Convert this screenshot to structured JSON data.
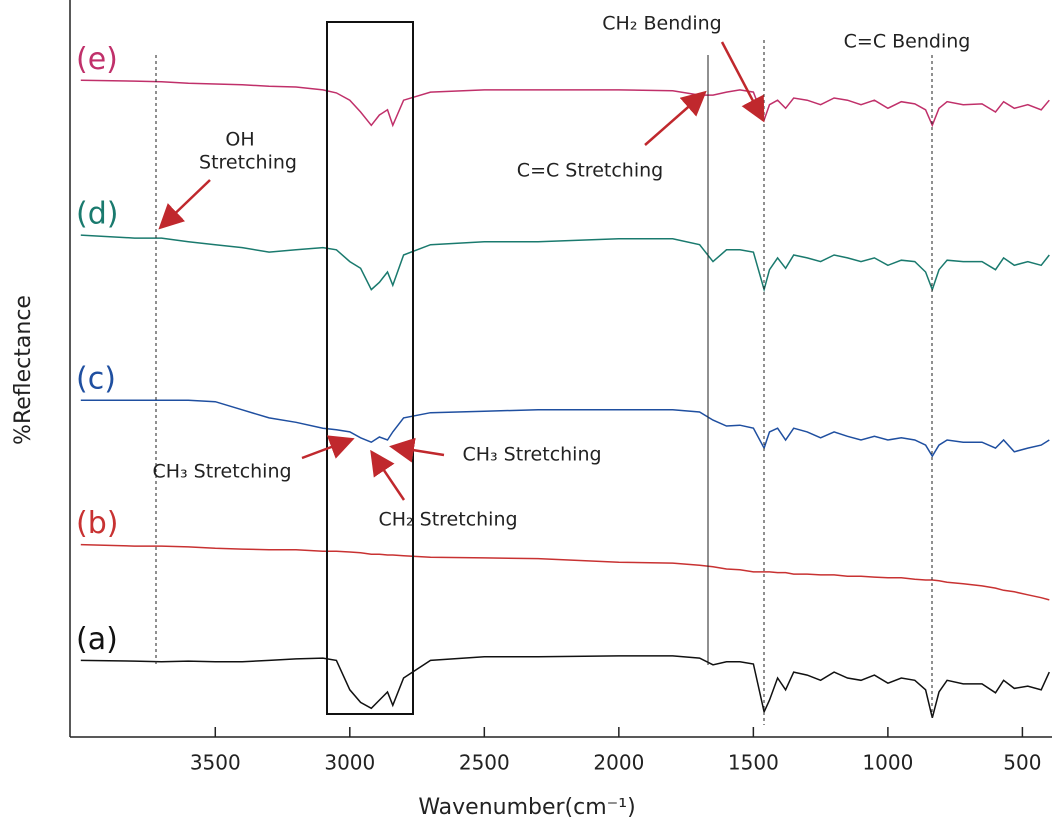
{
  "chart_data": {
    "type": "line",
    "xlabel": "Wavenumber(cm⁻¹)",
    "ylabel": "%Reflectance",
    "xlim": [
      4040,
      390
    ],
    "ylim": [
      0,
      100
    ],
    "xticks": [
      3500,
      3000,
      2500,
      2000,
      1500,
      1000,
      500
    ],
    "x": [
      4000,
      3800,
      3700,
      3600,
      3500,
      3400,
      3300,
      3200,
      3100,
      3050,
      3000,
      2960,
      2920,
      2890,
      2860,
      2840,
      2800,
      2700,
      2500,
      2300,
      2000,
      1800,
      1700,
      1650,
      1600,
      1550,
      1500,
      1460,
      1440,
      1410,
      1380,
      1350,
      1300,
      1250,
      1200,
      1150,
      1100,
      1050,
      1000,
      950,
      900,
      860,
      835,
      810,
      780,
      720,
      650,
      600,
      570,
      530,
      480,
      430,
      400
    ],
    "series": [
      {
        "name": "(a)",
        "color": "#111111",
        "values": [
          10.4,
          10.3,
          10.2,
          10.3,
          10.2,
          10.2,
          10.4,
          10.6,
          10.7,
          10.4,
          6.4,
          4.7,
          3.9,
          5.0,
          6.1,
          4.3,
          8.0,
          10.4,
          10.9,
          10.9,
          11.0,
          11.0,
          10.7,
          9.8,
          10.2,
          10.2,
          9.9,
          3.4,
          5.0,
          8.0,
          6.4,
          8.8,
          8.4,
          7.7,
          8.8,
          8.0,
          7.7,
          8.4,
          7.3,
          8.0,
          7.7,
          6.4,
          2.6,
          6.1,
          7.7,
          7.2,
          7.2,
          6.0,
          7.7,
          6.6,
          6.9,
          6.4,
          8.8
        ]
      },
      {
        "name": "(b)",
        "color": "#c83232",
        "values": [
          26.1,
          25.9,
          25.9,
          25.8,
          25.6,
          25.5,
          25.4,
          25.4,
          25.2,
          25.2,
          25.1,
          25.0,
          24.8,
          24.8,
          24.7,
          24.7,
          24.6,
          24.4,
          24.3,
          24.2,
          23.7,
          23.6,
          23.3,
          23.1,
          22.8,
          22.7,
          22.4,
          22.4,
          22.4,
          22.3,
          22.3,
          22.1,
          22.1,
          22.0,
          22.0,
          21.8,
          21.8,
          21.7,
          21.6,
          21.6,
          21.4,
          21.3,
          21.3,
          21.2,
          21.0,
          20.8,
          20.5,
          20.2,
          19.9,
          19.7,
          19.3,
          18.9,
          18.6
        ]
      },
      {
        "name": "(c)",
        "color": "#1f4fa0",
        "values": [
          45.7,
          45.7,
          45.7,
          45.7,
          45.5,
          44.4,
          43.3,
          42.7,
          41.9,
          41.7,
          41.4,
          40.6,
          40.0,
          40.7,
          40.3,
          41.4,
          43.3,
          44.0,
          44.2,
          44.4,
          44.4,
          44.4,
          44.1,
          43.0,
          42.2,
          42.3,
          41.9,
          39.2,
          41.4,
          41.9,
          40.3,
          41.9,
          41.4,
          40.6,
          41.4,
          40.8,
          40.3,
          40.8,
          40.3,
          40.6,
          40.3,
          39.6,
          38.1,
          39.6,
          40.3,
          40.0,
          40.0,
          39.2,
          40.3,
          38.7,
          39.2,
          39.6,
          40.3
        ]
      },
      {
        "name": "(d)",
        "color": "#1a7a6e",
        "values": [
          68.1,
          67.7,
          67.7,
          67.2,
          66.8,
          66.4,
          65.8,
          66.1,
          66.4,
          66.1,
          64.5,
          63.6,
          60.7,
          61.7,
          63.1,
          61.3,
          65.4,
          66.8,
          67.2,
          67.2,
          67.6,
          67.6,
          66.8,
          64.5,
          66.1,
          66.1,
          65.8,
          60.7,
          63.4,
          65.0,
          63.6,
          65.4,
          65.0,
          64.5,
          65.4,
          65.0,
          64.5,
          65.0,
          64.0,
          64.7,
          64.5,
          63.1,
          60.7,
          63.4,
          64.7,
          64.5,
          64.5,
          63.4,
          65.0,
          64.0,
          64.5,
          64.0,
          65.4
        ]
      },
      {
        "name": "(e)",
        "color": "#c0306a",
        "values": [
          89.1,
          89.0,
          88.9,
          88.7,
          88.6,
          88.5,
          88.3,
          88.2,
          87.8,
          87.4,
          86.4,
          84.8,
          83.0,
          84.4,
          85.1,
          83.0,
          86.4,
          87.5,
          87.8,
          87.8,
          87.8,
          87.7,
          87.1,
          87.1,
          87.5,
          87.8,
          87.5,
          83.7,
          85.8,
          86.4,
          85.3,
          86.7,
          86.4,
          85.8,
          86.7,
          86.4,
          85.8,
          86.4,
          85.3,
          86.2,
          85.9,
          85.1,
          83.0,
          85.3,
          86.2,
          85.8,
          85.9,
          84.8,
          86.2,
          85.3,
          85.8,
          85.1,
          86.4
        ]
      }
    ],
    "annotations": [
      "OH",
      "Stretching",
      "CH₂ Bending",
      "C=C Bending",
      "C=C Stretching",
      "CH₃ Stretching",
      "CH₃ Stretching",
      "CH₂ Stretching"
    ]
  }
}
